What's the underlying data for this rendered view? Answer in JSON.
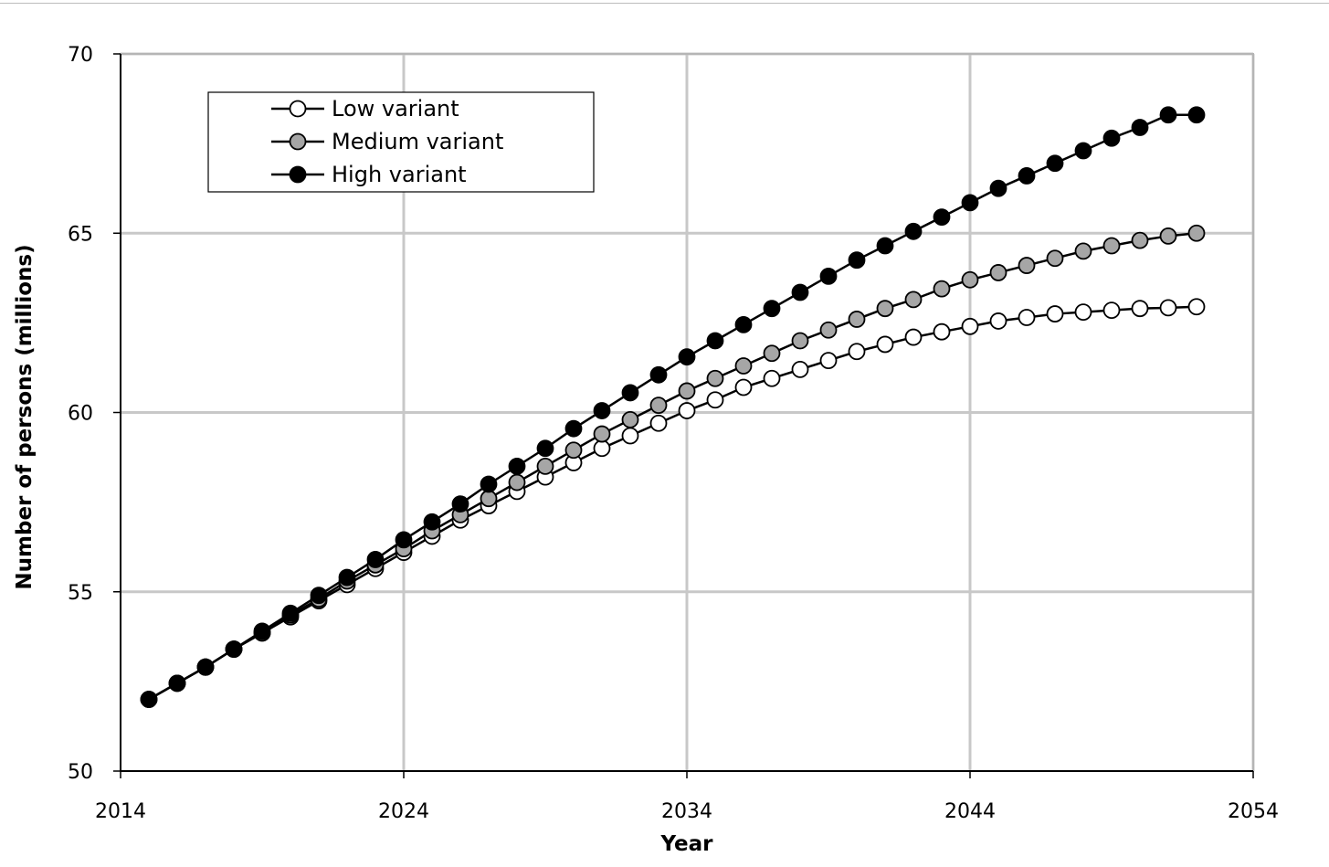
{
  "chart_data": {
    "type": "line",
    "title": "",
    "xlabel": "Year",
    "ylabel": "Number of persons (millions)",
    "xlim": [
      2014,
      2054
    ],
    "ylim": [
      50,
      70
    ],
    "xticks": [
      "2014",
      "2024",
      "2034",
      "2044",
      "2054"
    ],
    "yticks": [
      "50",
      "55",
      "60",
      "65",
      "70"
    ],
    "grid": true,
    "legend_position": "top-left",
    "x": [
      2015,
      2016,
      2017,
      2018,
      2019,
      2020,
      2021,
      2022,
      2023,
      2024,
      2025,
      2026,
      2027,
      2028,
      2029,
      2030,
      2031,
      2032,
      2033,
      2034,
      2035,
      2036,
      2037,
      2038,
      2039,
      2040,
      2041,
      2042,
      2043,
      2044,
      2045,
      2046,
      2047,
      2048,
      2049,
      2050,
      2051,
      2052
    ],
    "series": [
      {
        "name": "Low variant",
        "marker_fill": "#ffffff",
        "values": [
          52.0,
          52.45,
          52.9,
          53.4,
          53.85,
          54.3,
          54.75,
          55.2,
          55.65,
          56.1,
          56.55,
          57.0,
          57.4,
          57.8,
          58.2,
          58.6,
          59.0,
          59.35,
          59.7,
          60.05,
          60.35,
          60.7,
          60.95,
          61.2,
          61.45,
          61.7,
          61.9,
          62.1,
          62.25,
          62.4,
          62.55,
          62.65,
          62.75,
          62.8,
          62.85,
          62.9,
          62.92,
          62.95
        ]
      },
      {
        "name": "Medium variant",
        "marker_fill": "#a6a6a6",
        "values": [
          52.0,
          52.45,
          52.9,
          53.4,
          53.85,
          54.35,
          54.8,
          55.3,
          55.75,
          56.2,
          56.7,
          57.15,
          57.6,
          58.05,
          58.5,
          58.95,
          59.4,
          59.8,
          60.2,
          60.6,
          60.95,
          61.3,
          61.65,
          62.0,
          62.3,
          62.6,
          62.9,
          63.15,
          63.45,
          63.7,
          63.9,
          64.1,
          64.3,
          64.5,
          64.65,
          64.8,
          64.92,
          65.0
        ]
      },
      {
        "name": "High variant",
        "marker_fill": "#000000",
        "values": [
          52.0,
          52.45,
          52.9,
          53.4,
          53.9,
          54.4,
          54.9,
          55.4,
          55.9,
          56.45,
          56.95,
          57.45,
          58.0,
          58.5,
          59.0,
          59.55,
          60.05,
          60.55,
          61.05,
          61.55,
          62.0,
          62.45,
          62.9,
          63.35,
          63.8,
          64.25,
          64.65,
          65.05,
          65.45,
          65.85,
          66.25,
          66.6,
          66.95,
          67.3,
          67.65,
          67.95,
          68.3,
          68.3
        ]
      }
    ]
  }
}
